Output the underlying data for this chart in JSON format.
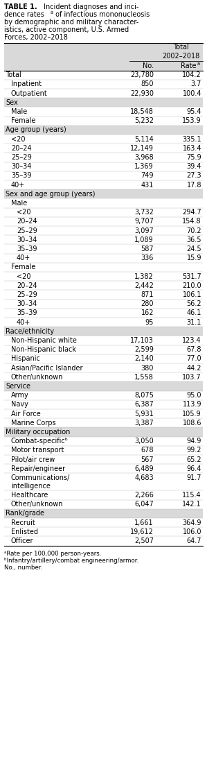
{
  "bg_color": "#d9d9d9",
  "rows": [
    {
      "label": "Total",
      "indent": 0,
      "no": "23,780",
      "rate": "104.2",
      "is_section": false
    },
    {
      "label": "Inpatient",
      "indent": 1,
      "no": "850",
      "rate": "3.7",
      "is_section": false
    },
    {
      "label": "Outpatient",
      "indent": 1,
      "no": "22,930",
      "rate": "100.4",
      "is_section": false
    },
    {
      "label": "Sex",
      "indent": 0,
      "no": "",
      "rate": "",
      "is_section": true
    },
    {
      "label": "Male",
      "indent": 1,
      "no": "18,548",
      "rate": "95.4",
      "is_section": false
    },
    {
      "label": "Female",
      "indent": 1,
      "no": "5,232",
      "rate": "153.9",
      "is_section": false
    },
    {
      "label": "Age group (years)",
      "indent": 0,
      "no": "",
      "rate": "",
      "is_section": true
    },
    {
      "label": "<20",
      "indent": 1,
      "no": "5,114",
      "rate": "335.1",
      "is_section": false
    },
    {
      "label": "20–24",
      "indent": 1,
      "no": "12,149",
      "rate": "163.4",
      "is_section": false
    },
    {
      "label": "25–29",
      "indent": 1,
      "no": "3,968",
      "rate": "75.9",
      "is_section": false
    },
    {
      "label": "30–34",
      "indent": 1,
      "no": "1,369",
      "rate": "39.4",
      "is_section": false
    },
    {
      "label": "35–39",
      "indent": 1,
      "no": "749",
      "rate": "27.3",
      "is_section": false
    },
    {
      "label": "40+",
      "indent": 1,
      "no": "431",
      "rate": "17.8",
      "is_section": false
    },
    {
      "label": "Sex and age group (years)",
      "indent": 0,
      "no": "",
      "rate": "",
      "is_section": true
    },
    {
      "label": "Male",
      "indent": 1,
      "no": "",
      "rate": "",
      "is_section": false
    },
    {
      "label": "<20",
      "indent": 2,
      "no": "3,732",
      "rate": "294.7",
      "is_section": false
    },
    {
      "label": "20–24",
      "indent": 2,
      "no": "9,707",
      "rate": "154.8",
      "is_section": false
    },
    {
      "label": "25–29",
      "indent": 2,
      "no": "3,097",
      "rate": "70.2",
      "is_section": false
    },
    {
      "label": "30–34",
      "indent": 2,
      "no": "1,089",
      "rate": "36.5",
      "is_section": false
    },
    {
      "label": "35–39",
      "indent": 2,
      "no": "587",
      "rate": "24.5",
      "is_section": false
    },
    {
      "label": "40+",
      "indent": 2,
      "no": "336",
      "rate": "15.9",
      "is_section": false
    },
    {
      "label": "Female",
      "indent": 1,
      "no": "",
      "rate": "",
      "is_section": false
    },
    {
      "label": "<20",
      "indent": 2,
      "no": "1,382",
      "rate": "531.7",
      "is_section": false
    },
    {
      "label": "20–24",
      "indent": 2,
      "no": "2,442",
      "rate": "210.0",
      "is_section": false
    },
    {
      "label": "25–29",
      "indent": 2,
      "no": "871",
      "rate": "106.1",
      "is_section": false
    },
    {
      "label": "30–34",
      "indent": 2,
      "no": "280",
      "rate": "56.2",
      "is_section": false
    },
    {
      "label": "35–39",
      "indent": 2,
      "no": "162",
      "rate": "46.1",
      "is_section": false
    },
    {
      "label": "40+",
      "indent": 2,
      "no": "95",
      "rate": "31.1",
      "is_section": false
    },
    {
      "label": "Race/ethnicity",
      "indent": 0,
      "no": "",
      "rate": "",
      "is_section": true
    },
    {
      "label": "Non-Hispanic white",
      "indent": 1,
      "no": "17,103",
      "rate": "123.4",
      "is_section": false
    },
    {
      "label": "Non-Hispanic black",
      "indent": 1,
      "no": "2,599",
      "rate": "67.8",
      "is_section": false
    },
    {
      "label": "Hispanic",
      "indent": 1,
      "no": "2,140",
      "rate": "77.0",
      "is_section": false
    },
    {
      "label": "Asian/Pacific Islander",
      "indent": 1,
      "no": "380",
      "rate": "44.2",
      "is_section": false
    },
    {
      "label": "Other/unknown",
      "indent": 1,
      "no": "1,558",
      "rate": "103.7",
      "is_section": false
    },
    {
      "label": "Service",
      "indent": 0,
      "no": "",
      "rate": "",
      "is_section": true
    },
    {
      "label": "Army",
      "indent": 1,
      "no": "8,075",
      "rate": "95.0",
      "is_section": false
    },
    {
      "label": "Navy",
      "indent": 1,
      "no": "6,387",
      "rate": "113.9",
      "is_section": false
    },
    {
      "label": "Air Force",
      "indent": 1,
      "no": "5,931",
      "rate": "105.9",
      "is_section": false
    },
    {
      "label": "Marine Corps",
      "indent": 1,
      "no": "3,387",
      "rate": "108.6",
      "is_section": false
    },
    {
      "label": "Military occupation",
      "indent": 0,
      "no": "",
      "rate": "",
      "is_section": true
    },
    {
      "label": "Combat-specificᵇ",
      "indent": 1,
      "no": "3,050",
      "rate": "94.9",
      "is_section": false
    },
    {
      "label": "Motor transport",
      "indent": 1,
      "no": "678",
      "rate": "99.2",
      "is_section": false
    },
    {
      "label": "Pilot/air crew",
      "indent": 1,
      "no": "567",
      "rate": "65.2",
      "is_section": false
    },
    {
      "label": "Repair/engineer",
      "indent": 1,
      "no": "6,489",
      "rate": "96.4",
      "is_section": false
    },
    {
      "label": "Communications/\nintelligence",
      "indent": 1,
      "no": "4,683",
      "rate": "91.7",
      "is_section": false
    },
    {
      "label": "Healthcare",
      "indent": 1,
      "no": "2,266",
      "rate": "115.4",
      "is_section": false
    },
    {
      "label": "Other/unknown",
      "indent": 1,
      "no": "6,047",
      "rate": "142.1",
      "is_section": false
    },
    {
      "label": "Rank/grade",
      "indent": 0,
      "no": "",
      "rate": "",
      "is_section": true
    },
    {
      "label": "Recruit",
      "indent": 1,
      "no": "1,661",
      "rate": "364.9",
      "is_section": false
    },
    {
      "label": "Enlisted",
      "indent": 1,
      "no": "19,612",
      "rate": "106.0",
      "is_section": false
    },
    {
      "label": "Officer",
      "indent": 1,
      "no": "2,507",
      "rate": "64.7",
      "is_section": false
    }
  ]
}
